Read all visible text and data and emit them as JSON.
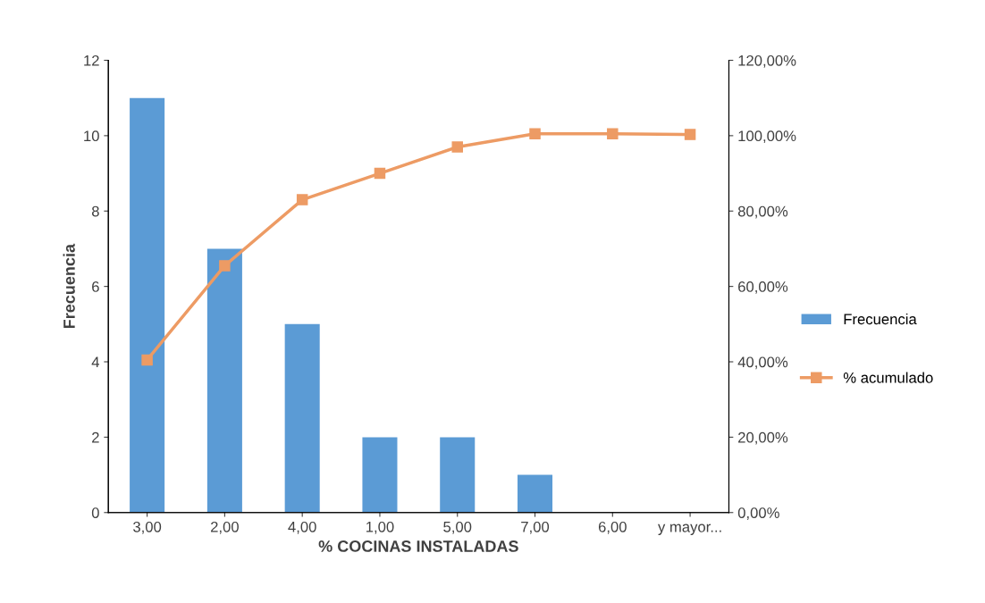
{
  "chart_data": {
    "type": "bar",
    "xlabel": "% COCINAS INSTALADAS",
    "ylabel": "Frecuencia",
    "categories": [
      "3,00",
      "2,00",
      "4,00",
      "1,00",
      "5,00",
      "7,00",
      "6,00",
      "y mayor..."
    ],
    "series": [
      {
        "name": "Frecuencia",
        "color": "#5b9bd5",
        "values": [
          11,
          7,
          5,
          2,
          2,
          1,
          0,
          0
        ]
      },
      {
        "name": "% acumulado",
        "type": "line",
        "axis": "y2",
        "color": "#ed9b64",
        "marker": "square",
        "values": [
          40.5,
          65.5,
          83.0,
          90.0,
          97.0,
          100.5,
          100.5,
          100.3
        ]
      }
    ],
    "ylim": [
      0,
      12
    ],
    "yticks": [
      0,
      2,
      4,
      6,
      8,
      10,
      12
    ],
    "y2lim": [
      0,
      120
    ],
    "y2ticks": [
      {
        "value": 0,
        "label": "0,00%"
      },
      {
        "value": 20,
        "label": "20,00%"
      },
      {
        "value": 40,
        "label": "40,00%"
      },
      {
        "value": 60,
        "label": "60,00%"
      },
      {
        "value": 80,
        "label": "80,00%"
      },
      {
        "value": 100,
        "label": "100,00%"
      },
      {
        "value": 120,
        "label": "120,00%"
      }
    ],
    "grid": false,
    "legend": "right"
  }
}
